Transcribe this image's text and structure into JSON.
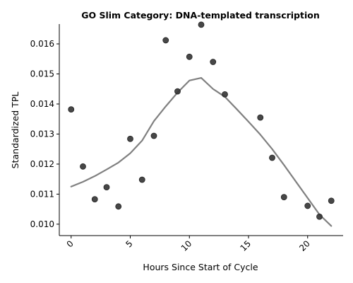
{
  "chart_data": {
    "type": "scatter",
    "title": "GO Slim Category: DNA-templated transcription",
    "xlabel": "Hours Since Start of Cycle",
    "ylabel": "Standardized TPL",
    "xlim": [
      -1,
      23
    ],
    "ylim": [
      0.00962,
      0.01666
    ],
    "xticks": [
      0,
      5,
      10,
      15,
      20
    ],
    "yticks": [
      0.01,
      0.011,
      0.012,
      0.013,
      0.014,
      0.015,
      0.016
    ],
    "ytick_labels": [
      "0.010",
      "0.011",
      "0.012",
      "0.013",
      "0.014",
      "0.015",
      "0.016"
    ],
    "grid": false,
    "points": {
      "x": [
        0,
        1,
        2,
        3,
        4,
        5,
        6,
        7,
        8,
        9,
        10,
        11,
        12,
        13,
        16,
        17,
        18,
        20,
        21,
        22
      ],
      "y": [
        0.01382,
        0.01192,
        0.01083,
        0.01123,
        0.01059,
        0.01284,
        0.01148,
        0.01294,
        0.01612,
        0.01442,
        0.01557,
        0.01664,
        0.0154,
        0.01432,
        0.01355,
        0.01221,
        0.0109,
        0.01061,
        0.01025,
        0.01078
      ],
      "color": "#333333"
    },
    "trend_line": {
      "x": [
        0,
        1,
        2,
        3,
        4,
        5,
        6,
        7,
        8,
        9,
        10,
        11,
        12,
        13,
        14,
        15,
        16,
        17,
        18,
        19,
        20,
        21,
        22
      ],
      "y": [
        0.01125,
        0.01141,
        0.0116,
        0.01182,
        0.01205,
        0.01236,
        0.01278,
        0.01343,
        0.01392,
        0.01438,
        0.01478,
        0.01487,
        0.0145,
        0.01424,
        0.01383,
        0.01341,
        0.01298,
        0.0125,
        0.01197,
        0.01142,
        0.01087,
        0.01032,
        0.00994
      ],
      "color": "#808080"
    }
  }
}
